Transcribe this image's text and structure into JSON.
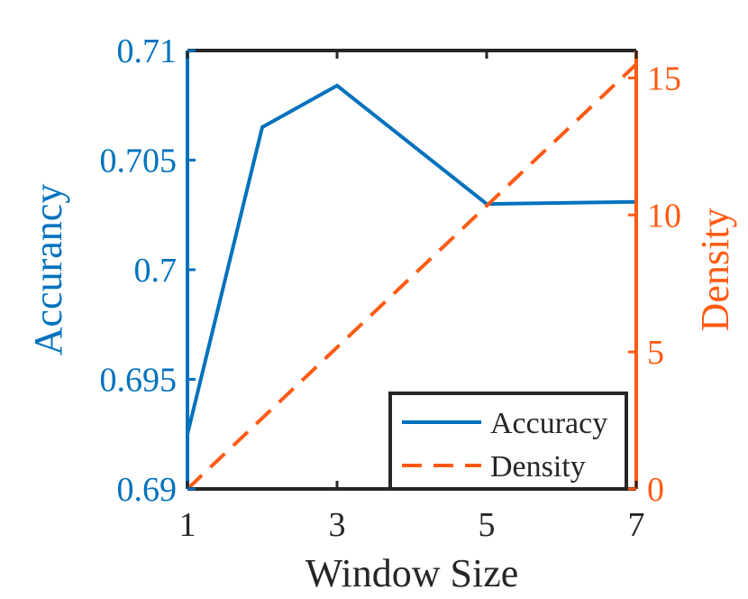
{
  "chart_data": {
    "type": "line",
    "x_label": "Window Size",
    "x_ticks": [
      1,
      3,
      5,
      7
    ],
    "x_range": [
      1,
      7
    ],
    "left_axis": {
      "label": "Accurancy",
      "range": [
        0.69,
        0.71
      ],
      "ticks": [
        "0.69",
        "0.695",
        "0.7",
        "0.705",
        "0.71"
      ],
      "color": "#0072BD"
    },
    "right_axis": {
      "label": "Density",
      "range": [
        0,
        16
      ],
      "ticks": [
        "0",
        "5",
        "10",
        "15"
      ],
      "color": "#FF5A14"
    },
    "series": [
      {
        "name": "Accuracy",
        "axis": "left",
        "style": "solid",
        "color": "#0072BD",
        "x": [
          1,
          2,
          3,
          5,
          7
        ],
        "y": [
          0.6925,
          0.7065,
          0.7084,
          0.703,
          0.7031
        ]
      },
      {
        "name": "Density",
        "axis": "right",
        "style": "dashed",
        "color": "#FF5A14",
        "x": [
          1,
          7
        ],
        "y": [
          0,
          15.5
        ]
      }
    ],
    "legend": {
      "position": "bottom-right",
      "entries": [
        "Accuracy",
        "Density"
      ]
    },
    "grid": false
  }
}
